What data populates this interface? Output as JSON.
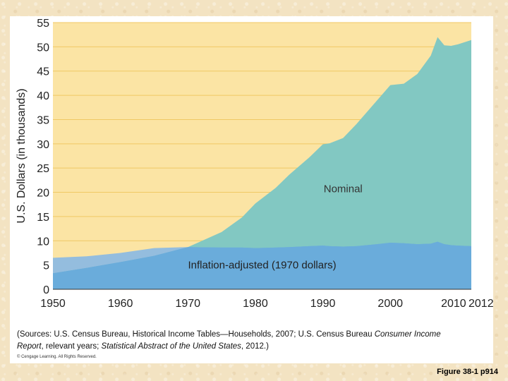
{
  "chart_data": {
    "type": "area",
    "x": [
      1950,
      1955,
      1960,
      1965,
      1970,
      1975,
      1978,
      1980,
      1983,
      1985,
      1988,
      1990,
      1991,
      1993,
      1995,
      1998,
      2000,
      2002,
      2004,
      2006,
      2007,
      2008,
      2009,
      2010,
      2012
    ],
    "series": [
      {
        "name": "Nominal",
        "values": [
          3.3,
          4.4,
          5.6,
          6.9,
          8.7,
          11.8,
          14.8,
          17.7,
          20.9,
          23.6,
          27.2,
          29.9,
          30.1,
          31.2,
          34.1,
          38.9,
          42.1,
          42.4,
          44.4,
          48.2,
          52.0,
          50.3,
          50.2,
          50.5,
          51.4
        ]
      },
      {
        "name": "Inflation-adjusted (1970 dollars)",
        "values": [
          6.5,
          6.8,
          7.5,
          8.5,
          8.7,
          8.6,
          8.6,
          8.5,
          8.6,
          8.7,
          8.9,
          9.0,
          8.9,
          8.8,
          8.9,
          9.3,
          9.6,
          9.5,
          9.3,
          9.4,
          9.8,
          9.3,
          9.1,
          9.0,
          8.9
        ]
      }
    ],
    "xticks": [
      "1950",
      "1960",
      "1970",
      "1980",
      "1990",
      "2000",
      "2010",
      "2012"
    ],
    "xtick_values": [
      1950,
      1960,
      1970,
      1980,
      1990,
      2000,
      2010,
      2012
    ],
    "yticks": [
      "0",
      "5",
      "10",
      "15",
      "20",
      "25",
      "30",
      "35",
      "40",
      "45",
      "50",
      "55"
    ],
    "ytick_values": [
      0,
      5,
      10,
      15,
      20,
      25,
      30,
      35,
      40,
      45,
      50,
      55
    ],
    "xlim": [
      1950,
      2012
    ],
    "ylim": [
      0,
      55
    ],
    "ylabel": "U.S. Dollars (in thousands)",
    "annotations": [
      {
        "text": "Nominal",
        "x": 1993,
        "y": 20
      },
      {
        "text": "Inflation-adjusted (1970 dollars)",
        "x": 1981,
        "y": 4.3
      }
    ],
    "grid": true
  },
  "colors": {
    "plot_background": "#fbe4a4",
    "gridline": "#f0c864",
    "nominal_fill": "#82c8c2",
    "adjusted_fill": "#6aacdb",
    "adjusted_overlap": "#94bdde"
  },
  "source": {
    "line1_a": "(Sources: U.S. Census Bureau, Historical Income Tables—Households, 2007; U.S. Census Bureau ",
    "line1_b": "Consumer Income",
    "line2_a": "Report",
    "line2_b": ", relevant years; ",
    "line2_c": "Statistical Abstract of the United  States",
    "line2_d": ", 2012.)",
    "copyright": "© Cengage Learning. All Rights Reserved."
  },
  "figure_label": "Figure 38-1 p914"
}
